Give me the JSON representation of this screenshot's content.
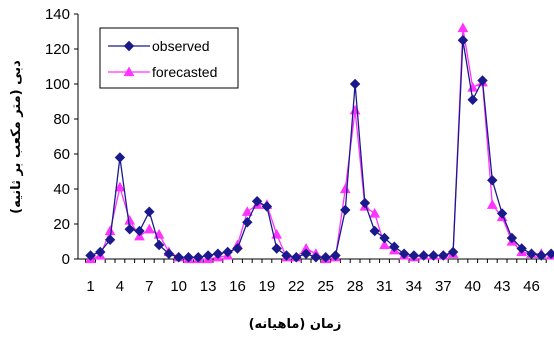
{
  "chart_data": {
    "type": "line",
    "xlabel": "زمان (ماهیانه)",
    "ylabel": "دبی (متر مکعب بر ثانیه)",
    "ylim": [
      0,
      140
    ],
    "yticks": [
      0,
      20,
      40,
      60,
      80,
      100,
      120,
      140
    ],
    "xlim": [
      1,
      48
    ],
    "xticks": [
      1,
      4,
      7,
      10,
      13,
      16,
      19,
      22,
      25,
      28,
      31,
      34,
      37,
      40,
      43,
      46
    ],
    "grid": false,
    "legend_position": "top-left",
    "x": [
      1,
      2,
      3,
      4,
      5,
      6,
      7,
      8,
      9,
      10,
      11,
      12,
      13,
      14,
      15,
      16,
      17,
      18,
      19,
      20,
      21,
      22,
      23,
      24,
      25,
      26,
      27,
      28,
      29,
      30,
      31,
      32,
      33,
      34,
      35,
      36,
      37,
      38,
      39,
      40,
      41,
      42,
      43,
      44,
      45,
      46,
      47,
      48
    ],
    "series": [
      {
        "name": "observed",
        "color": "#1a1a8c",
        "marker": "diamond",
        "values": [
          2,
          4,
          11,
          58,
          17,
          16,
          27,
          8,
          3,
          1,
          1,
          1,
          2,
          3,
          4,
          6,
          21,
          33,
          30,
          6,
          2,
          1,
          3,
          1,
          1,
          2,
          28,
          100,
          32,
          16,
          12,
          7,
          3,
          2,
          2,
          2,
          2,
          4,
          125,
          91,
          102,
          45,
          26,
          12,
          6,
          3,
          2,
          3
        ]
      },
      {
        "name": "forecasted",
        "color": "#ff33ff",
        "marker": "triangle",
        "values": [
          0,
          2,
          16,
          41,
          22,
          13,
          17,
          14,
          4,
          1,
          0,
          0,
          0,
          1,
          2,
          8,
          27,
          31,
          31,
          14,
          1,
          1,
          6,
          3,
          0,
          1,
          40,
          85,
          30,
          26,
          8,
          5,
          2,
          1,
          2,
          2,
          2,
          3,
          132,
          98,
          101,
          31,
          24,
          10,
          4,
          3,
          3,
          2
        ]
      }
    ]
  }
}
